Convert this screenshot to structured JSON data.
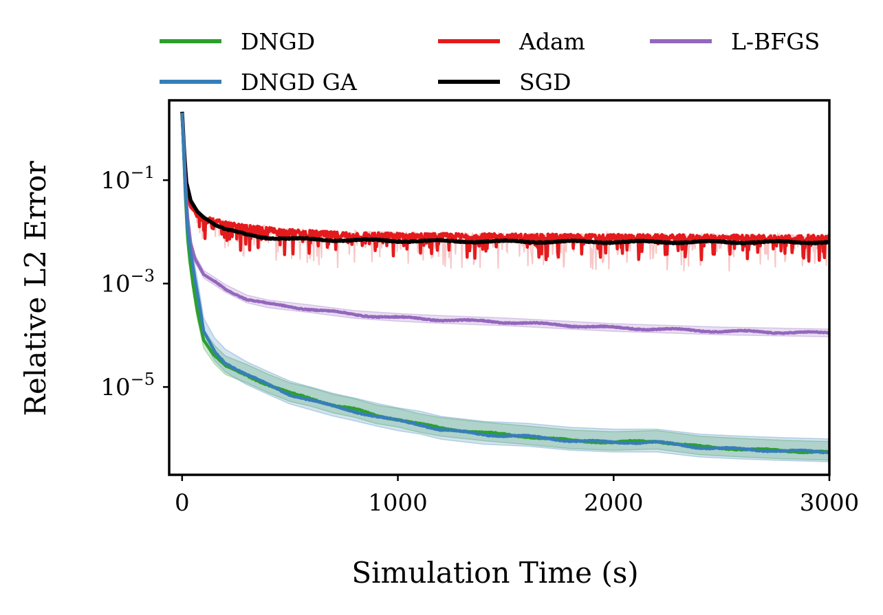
{
  "chart_data": {
    "type": "line",
    "title": "",
    "xlabel": "Simulation Time (s)",
    "ylabel": "Relative L2 Error",
    "xlim": [
      -60,
      3000
    ],
    "ylim": [
      2e-07,
      3.5
    ],
    "yscale": "log",
    "x_ticks": [
      0,
      1000,
      2000,
      3000
    ],
    "x_tick_labels": [
      "0",
      "1000",
      "2000",
      "3000"
    ],
    "y_ticks": [
      1e-05,
      0.001,
      0.1
    ],
    "y_tick_labels": [
      {
        "base": "10",
        "exp": "−5"
      },
      {
        "base": "10",
        "exp": "−3"
      },
      {
        "base": "10",
        "exp": "−1"
      }
    ],
    "grid": false,
    "legend_position": "top, outside plot area",
    "series": [
      {
        "name": "DNGD",
        "color": "#2ca02c",
        "noisy": false,
        "band": {
          "lo": 0.7,
          "hi": 1.6,
          "color": "#2ca02c"
        },
        "points": [
          [
            0,
            2.0
          ],
          [
            8,
            0.3
          ],
          [
            15,
            0.05
          ],
          [
            25,
            0.008
          ],
          [
            35,
            0.003
          ],
          [
            50,
            0.001
          ],
          [
            70,
            0.0003
          ],
          [
            100,
            8e-05
          ],
          [
            150,
            4e-05
          ],
          [
            200,
            2.5e-05
          ],
          [
            300,
            1.7e-05
          ],
          [
            400,
            1.1e-05
          ],
          [
            500,
            7.5e-06
          ],
          [
            600,
            6e-06
          ],
          [
            700,
            4.5e-06
          ],
          [
            800,
            3.7e-06
          ],
          [
            900,
            2.8e-06
          ],
          [
            1000,
            2.4e-06
          ],
          [
            1100,
            1.9e-06
          ],
          [
            1200,
            1.6e-06
          ],
          [
            1400,
            1.3e-06
          ],
          [
            1600,
            1.1e-06
          ],
          [
            1800,
            9.2e-07
          ],
          [
            2000,
            8.5e-07
          ],
          [
            2200,
            9e-07
          ],
          [
            2400,
            7e-07
          ],
          [
            2600,
            6.3e-07
          ],
          [
            2800,
            5.8e-07
          ],
          [
            3000,
            5.5e-07
          ]
        ]
      },
      {
        "name": "DNGD GA",
        "color": "#377eb8",
        "noisy": false,
        "band": {
          "lo": 0.65,
          "hi": 1.8,
          "color": "#377eb8"
        },
        "points": [
          [
            0,
            2.0
          ],
          [
            8,
            0.3
          ],
          [
            15,
            0.06
          ],
          [
            25,
            0.012
          ],
          [
            40,
            0.004
          ],
          [
            60,
            0.0012
          ],
          [
            80,
            0.0004
          ],
          [
            100,
            0.00012
          ],
          [
            150,
            5e-05
          ],
          [
            200,
            3e-05
          ],
          [
            300,
            1.7e-05
          ],
          [
            400,
            1.1e-05
          ],
          [
            500,
            7.2e-06
          ],
          [
            600,
            5.5e-06
          ],
          [
            700,
            4.2e-06
          ],
          [
            800,
            3.4e-06
          ],
          [
            900,
            2.7e-06
          ],
          [
            1000,
            2.2e-06
          ],
          [
            1100,
            1.9e-06
          ],
          [
            1200,
            1.5e-06
          ],
          [
            1400,
            1.2e-06
          ],
          [
            1600,
            1.1e-06
          ],
          [
            1800,
            9.2e-07
          ],
          [
            2000,
            8.5e-07
          ],
          [
            2200,
            8.5e-07
          ],
          [
            2400,
            6.8e-07
          ],
          [
            2600,
            6.2e-07
          ],
          [
            2800,
            5.8e-07
          ],
          [
            3000,
            5.5e-07
          ]
        ]
      },
      {
        "name": "Adam",
        "color": "#e41a1c",
        "noisy": true,
        "points": [
          [
            0,
            2.0
          ],
          [
            10,
            0.2
          ],
          [
            20,
            0.06
          ],
          [
            40,
            0.03
          ],
          [
            70,
            0.022
          ],
          [
            100,
            0.019
          ],
          [
            200,
            0.014
          ],
          [
            300,
            0.012
          ],
          [
            500,
            0.01
          ],
          [
            700,
            0.009
          ],
          [
            1000,
            0.0085
          ],
          [
            1500,
            0.0082
          ],
          [
            2000,
            0.008
          ],
          [
            2500,
            0.0078
          ],
          [
            3000,
            0.0077
          ]
        ]
      },
      {
        "name": "SGD",
        "color": "#000000",
        "noisy": false,
        "points": [
          [
            0,
            2.1
          ],
          [
            10,
            0.35
          ],
          [
            20,
            0.09
          ],
          [
            40,
            0.04
          ],
          [
            70,
            0.025
          ],
          [
            100,
            0.019
          ],
          [
            150,
            0.014
          ],
          [
            200,
            0.011
          ],
          [
            300,
            0.0088
          ],
          [
            400,
            0.0078
          ],
          [
            500,
            0.0073
          ],
          [
            700,
            0.007
          ],
          [
            1000,
            0.0067
          ],
          [
            1500,
            0.0065
          ],
          [
            2000,
            0.0064
          ],
          [
            3000,
            0.0063
          ]
        ]
      },
      {
        "name": "L-BFGS",
        "color": "#9467bd",
        "noisy": false,
        "band": {
          "lo": 0.85,
          "hi": 1.2,
          "color": "#9467bd"
        },
        "points": [
          [
            0,
            2.0
          ],
          [
            8,
            0.5
          ],
          [
            15,
            0.1
          ],
          [
            25,
            0.02
          ],
          [
            40,
            0.006
          ],
          [
            60,
            0.003
          ],
          [
            100,
            0.0015
          ],
          [
            150,
            0.0011
          ],
          [
            200,
            0.0008
          ],
          [
            300,
            0.0005
          ],
          [
            400,
            0.0004
          ],
          [
            600,
            0.00032
          ],
          [
            800,
            0.00025
          ],
          [
            1000,
            0.00022
          ],
          [
            1200,
            0.0002
          ],
          [
            1500,
            0.00018
          ],
          [
            2000,
            0.00014
          ],
          [
            2500,
            0.00012
          ],
          [
            3000,
            0.00011
          ]
        ]
      }
    ]
  },
  "legend": [
    {
      "label": "DNGD",
      "color": "#2ca02c"
    },
    {
      "label": "DNGD GA",
      "color": "#377eb8"
    },
    {
      "label": "Adam",
      "color": "#e41a1c"
    },
    {
      "label": "SGD",
      "color": "#000000"
    },
    {
      "label": "L-BFGS",
      "color": "#9467bd"
    }
  ]
}
